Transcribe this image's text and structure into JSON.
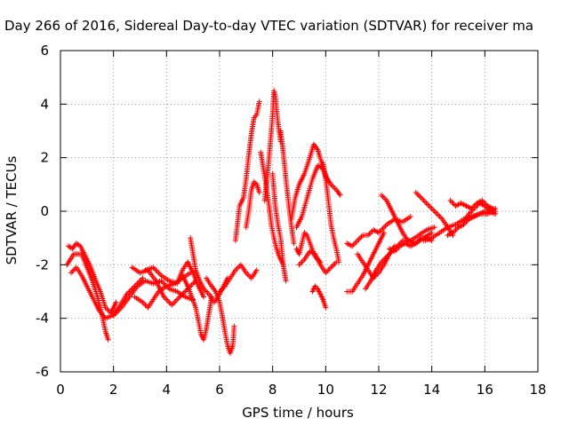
{
  "chart_data": {
    "type": "scatter",
    "title": "Day 266 of 2016, Sidereal Day-to-day VTEC variation (SDTVAR) for receiver ma",
    "xlabel": "GPS time / hours",
    "ylabel": "SDTVAR / TECUs",
    "xlim": [
      0,
      18
    ],
    "ylim": [
      -6,
      6
    ],
    "x_ticks": [
      0,
      2,
      4,
      6,
      8,
      10,
      12,
      14,
      16,
      18
    ],
    "y_ticks": [
      -6,
      -4,
      -2,
      0,
      2,
      4,
      6
    ],
    "x_tick_labels": [
      "0",
      "2",
      "4",
      "6",
      "8",
      "10",
      "12",
      "14",
      "16",
      "18"
    ],
    "y_tick_labels": [
      "-6",
      "-4",
      "-2",
      "0",
      "2",
      "4",
      "6"
    ],
    "grid": true,
    "marker": "+",
    "color": "#ff0000",
    "series": [
      {
        "name": "s1",
        "x": [
          0.25,
          0.5,
          0.8,
          1.0,
          1.2,
          1.4,
          1.55,
          1.7,
          1.8
        ],
        "y": [
          -2.0,
          -1.6,
          -1.6,
          -2.1,
          -2.6,
          -3.2,
          -3.8,
          -4.5,
          -4.8
        ]
      },
      {
        "name": "s2",
        "x": [
          0.3,
          0.45,
          0.6,
          0.75,
          0.9,
          1.1,
          1.3,
          1.5,
          1.7,
          1.9,
          2.1
        ],
        "y": [
          -1.3,
          -1.4,
          -1.2,
          -1.3,
          -1.6,
          -2.0,
          -2.5,
          -3.0,
          -3.6,
          -3.8,
          -3.4
        ]
      },
      {
        "name": "s3",
        "x": [
          0.4,
          0.6,
          0.8,
          1.0,
          1.2,
          1.45,
          1.7,
          1.95,
          2.2,
          2.5,
          2.8,
          3.1
        ],
        "y": [
          -2.3,
          -2.1,
          -2.4,
          -2.8,
          -3.2,
          -3.7,
          -4.0,
          -3.9,
          -3.6,
          -3.1,
          -2.8,
          -2.5
        ]
      },
      {
        "name": "s4",
        "x": [
          2.0,
          2.3,
          2.6,
          2.9,
          3.2,
          3.5,
          3.8,
          4.1,
          4.4,
          4.7,
          5.0
        ],
        "y": [
          -3.9,
          -3.6,
          -3.2,
          -2.8,
          -2.6,
          -2.7,
          -2.6,
          -2.9,
          -3.0,
          -3.2,
          -3.3
        ]
      },
      {
        "name": "s5",
        "x": [
          2.7,
          3.0,
          3.3,
          3.6,
          3.9,
          4.2,
          4.5,
          4.8,
          5.1
        ],
        "y": [
          -2.1,
          -2.3,
          -2.2,
          -2.6,
          -3.2,
          -3.5,
          -3.2,
          -2.9,
          -2.6
        ]
      },
      {
        "name": "s6",
        "x": [
          2.8,
          3.1,
          3.3,
          3.5,
          3.7,
          4.0,
          4.3,
          4.6,
          4.9
        ],
        "y": [
          -3.2,
          -3.4,
          -3.6,
          -3.3,
          -3.0,
          -2.8,
          -2.7,
          -2.5,
          -2.3
        ]
      },
      {
        "name": "s7",
        "x": [
          3.2,
          3.5,
          3.8,
          4.1,
          4.4,
          4.6,
          4.8,
          5.0,
          5.2,
          5.4
        ],
        "y": [
          -2.2,
          -2.1,
          -2.4,
          -2.6,
          -2.7,
          -2.2,
          -1.9,
          -2.3,
          -2.8,
          -3.2
        ]
      },
      {
        "name": "s8",
        "x": [
          4.6,
          4.8,
          4.95,
          5.1,
          5.2,
          5.3,
          5.4,
          5.5,
          5.6,
          5.7
        ],
        "y": [
          -2.4,
          -2.8,
          -3.2,
          -3.6,
          -4.1,
          -4.6,
          -4.8,
          -4.4,
          -3.8,
          -3.2
        ]
      },
      {
        "name": "s9",
        "x": [
          4.9,
          5.0,
          5.1,
          5.25,
          5.4,
          5.6,
          5.8,
          6.0,
          6.15,
          6.3
        ],
        "y": [
          -1.0,
          -1.6,
          -2.2,
          -2.6,
          -2.9,
          -3.1,
          -3.4,
          -3.1,
          -2.8,
          -2.5
        ]
      },
      {
        "name": "s10",
        "x": [
          5.5,
          5.7,
          5.85,
          6.0,
          6.1,
          6.2,
          6.3,
          6.4,
          6.5,
          6.55
        ],
        "y": [
          -2.5,
          -2.8,
          -3.0,
          -3.4,
          -3.9,
          -4.5,
          -5.0,
          -5.3,
          -5.0,
          -4.3
        ]
      },
      {
        "name": "s11",
        "x": [
          6.0,
          6.2,
          6.4,
          6.6,
          6.8,
          7.0,
          7.2,
          7.4
        ],
        "y": [
          -3.0,
          -2.8,
          -2.5,
          -2.2,
          -2.0,
          -2.3,
          -2.5,
          -2.2
        ]
      },
      {
        "name": "s12",
        "x": [
          6.6,
          6.75,
          6.9,
          7.0,
          7.1,
          7.2,
          7.3,
          7.4,
          7.5
        ],
        "y": [
          -1.1,
          0.2,
          0.5,
          1.2,
          2.1,
          2.9,
          3.5,
          3.6,
          4.1
        ]
      },
      {
        "name": "s13",
        "x": [
          7.0,
          7.1,
          7.2,
          7.3,
          7.4,
          7.5
        ],
        "y": [
          -0.6,
          0.0,
          0.8,
          1.1,
          1.0,
          0.7
        ]
      },
      {
        "name": "s14",
        "x": [
          7.7,
          7.8,
          7.9,
          8.0,
          8.05,
          8.1,
          8.2,
          8.3
        ],
        "y": [
          0.4,
          1.3,
          2.4,
          3.6,
          4.5,
          4.3,
          3.3,
          2.6
        ]
      },
      {
        "name": "s15",
        "x": [
          7.55,
          7.65,
          7.75,
          7.85,
          7.95,
          8.05,
          8.15,
          8.25,
          8.4
        ],
        "y": [
          2.2,
          1.6,
          1.0,
          0.3,
          -0.5,
          -1.0,
          -1.4,
          -1.7,
          -2.0
        ]
      },
      {
        "name": "s16",
        "x": [
          8.0,
          8.1,
          8.2,
          8.3,
          8.4,
          8.5
        ],
        "y": [
          1.4,
          0.2,
          -0.5,
          -1.0,
          -2.0,
          -2.6
        ]
      },
      {
        "name": "s17",
        "x": [
          8.3,
          8.4,
          8.5,
          8.6,
          8.7,
          8.8
        ],
        "y": [
          3.0,
          2.2,
          1.2,
          0.3,
          -0.5,
          -1.2
        ]
      },
      {
        "name": "s18",
        "x": [
          8.7,
          8.85,
          9.0,
          9.2,
          9.4,
          9.55,
          9.7,
          9.85,
          10.0,
          10.2,
          10.4,
          10.55
        ],
        "y": [
          -0.3,
          0.5,
          1.0,
          1.4,
          2.0,
          2.5,
          2.3,
          1.8,
          1.3,
          1.0,
          0.8,
          0.6
        ]
      },
      {
        "name": "s19",
        "x": [
          8.9,
          9.1,
          9.3,
          9.5,
          9.7,
          9.9,
          10.1
        ],
        "y": [
          -0.6,
          -0.2,
          0.5,
          1.2,
          1.7,
          1.6,
          1.1
        ]
      },
      {
        "name": "s20",
        "x": [
          8.9,
          9.0,
          9.1,
          9.2,
          9.3,
          9.45,
          9.6,
          9.8
        ],
        "y": [
          -1.4,
          -1.6,
          -1.2,
          -0.8,
          -0.9,
          -1.3,
          -1.7,
          -1.9
        ]
      },
      {
        "name": "s21",
        "x": [
          9.0,
          9.2,
          9.4,
          9.6,
          9.8,
          10.0,
          10.2,
          10.4
        ],
        "y": [
          -2.0,
          -1.8,
          -1.5,
          -1.6,
          -2.0,
          -2.3,
          -2.1,
          -1.9
        ]
      },
      {
        "name": "s22",
        "x": [
          9.5,
          9.6,
          9.7,
          9.8,
          9.9,
          10.0
        ],
        "y": [
          -3.0,
          -2.8,
          -2.9,
          -3.1,
          -3.3,
          -3.6
        ]
      },
      {
        "name": "s23",
        "x": [
          9.9,
          10.0,
          10.1,
          10.2,
          10.3,
          10.4,
          10.5
        ],
        "y": [
          1.8,
          1.2,
          0.4,
          -0.5,
          -1.0,
          -1.4,
          -1.9
        ]
      },
      {
        "name": "s24",
        "x": [
          10.8,
          11.0,
          11.2,
          11.4,
          11.6,
          11.8,
          12.0,
          12.3,
          12.6,
          12.9,
          13.2
        ],
        "y": [
          -1.2,
          -1.3,
          -1.1,
          -0.9,
          -0.9,
          -0.7,
          -0.8,
          -0.5,
          -0.3,
          -0.4,
          -0.2
        ]
      },
      {
        "name": "s25",
        "x": [
          10.8,
          11.0,
          11.2,
          11.4,
          11.6,
          11.8,
          12.0,
          12.2
        ],
        "y": [
          -3.0,
          -3.0,
          -2.7,
          -2.4,
          -2.0,
          -1.6,
          -1.2,
          -0.8
        ]
      },
      {
        "name": "s26",
        "x": [
          11.2,
          11.4,
          11.6,
          11.8,
          12.0,
          12.2,
          12.4,
          12.6
        ],
        "y": [
          -1.6,
          -1.9,
          -2.2,
          -2.5,
          -2.3,
          -2.0,
          -1.6,
          -1.3
        ]
      },
      {
        "name": "s27",
        "x": [
          11.5,
          11.7,
          11.9,
          12.1,
          12.3,
          12.5,
          12.7,
          12.9,
          13.2,
          13.5,
          13.8,
          14.1
        ],
        "y": [
          -2.9,
          -2.6,
          -2.2,
          -1.9,
          -1.7,
          -1.5,
          -1.3,
          -1.1,
          -1.1,
          -0.9,
          -0.7,
          -0.6
        ]
      },
      {
        "name": "s28",
        "x": [
          12.1,
          12.3,
          12.5,
          12.7,
          12.9,
          13.1,
          13.4,
          13.7,
          14.0
        ],
        "y": [
          0.6,
          0.4,
          0.0,
          -0.4,
          -0.8,
          -1.1,
          -1.2,
          -1.0,
          -0.8
        ]
      },
      {
        "name": "s29",
        "x": [
          12.4,
          12.6,
          12.8,
          13.0,
          13.2,
          13.4,
          13.6,
          13.8,
          14.0
        ],
        "y": [
          -1.4,
          -1.5,
          -1.3,
          -1.2,
          -1.3,
          -1.2,
          -1.0,
          -1.0,
          -1.1
        ]
      },
      {
        "name": "s30",
        "x": [
          13.4,
          13.6,
          13.8,
          14.0,
          14.2,
          14.4,
          14.6,
          14.8
        ],
        "y": [
          0.7,
          0.5,
          0.3,
          0.1,
          -0.1,
          -0.3,
          -0.6,
          -0.9
        ]
      },
      {
        "name": "s31",
        "x": [
          13.7,
          14.0,
          14.3,
          14.6,
          14.9,
          15.2,
          15.5,
          15.8,
          16.1,
          16.4
        ],
        "y": [
          -1.1,
          -1.0,
          -0.8,
          -0.6,
          -0.5,
          -0.3,
          -0.2,
          -0.1,
          -0.1,
          0.0
        ]
      },
      {
        "name": "s32",
        "x": [
          14.6,
          14.8,
          15.0,
          15.2,
          15.4,
          15.6,
          15.8,
          16.0,
          16.2,
          16.4
        ],
        "y": [
          -0.9,
          -0.8,
          -0.6,
          -0.5,
          -0.3,
          -0.2,
          -0.1,
          0.0,
          0.0,
          0.1
        ]
      },
      {
        "name": "s33",
        "x": [
          14.7,
          14.9,
          15.1,
          15.3,
          15.5,
          15.7,
          15.9,
          16.1,
          16.3
        ],
        "y": [
          0.4,
          0.2,
          0.3,
          0.2,
          0.1,
          0.3,
          0.4,
          0.2,
          0.1
        ]
      },
      {
        "name": "s34",
        "x": [
          15.2,
          15.4,
          15.6,
          15.8,
          16.0,
          16.2,
          16.4
        ],
        "y": [
          -0.4,
          -0.1,
          0.1,
          0.3,
          0.2,
          0.0,
          -0.1
        ]
      }
    ]
  }
}
